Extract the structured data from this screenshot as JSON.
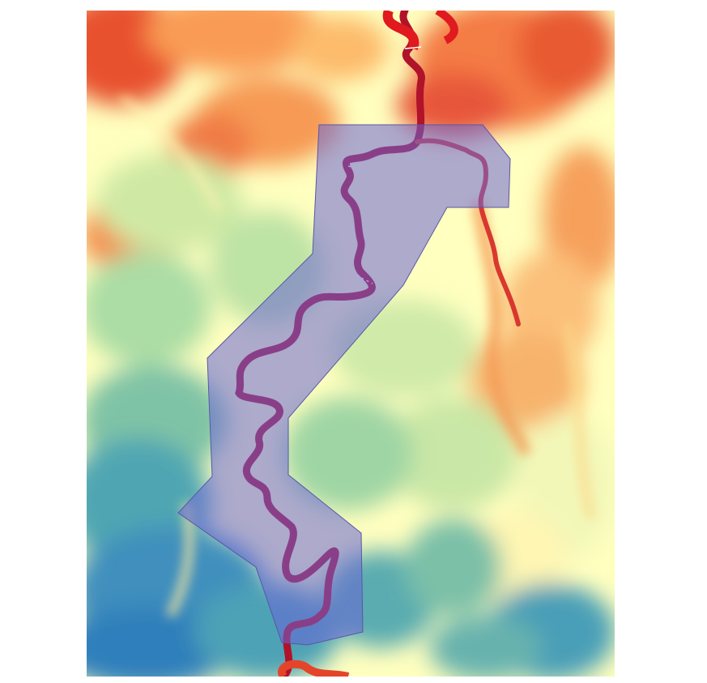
{
  "map": {
    "type": "elevation-raster-with-study-area",
    "color_ramp": {
      "name": "spectral-reversed",
      "low_color": "#2b83ba",
      "mid_low_color": "#abdda4",
      "mid_color": "#ffffbf",
      "mid_high_color": "#fdae61",
      "high_color": "#d7191c"
    },
    "river_channel_color": "#d7191c",
    "study_area_polygon": {
      "fill_color": "#6a64d6",
      "fill_opacity": 0.55,
      "stroke_color": "#5a55a8"
    },
    "background_color": "#ffffff"
  }
}
